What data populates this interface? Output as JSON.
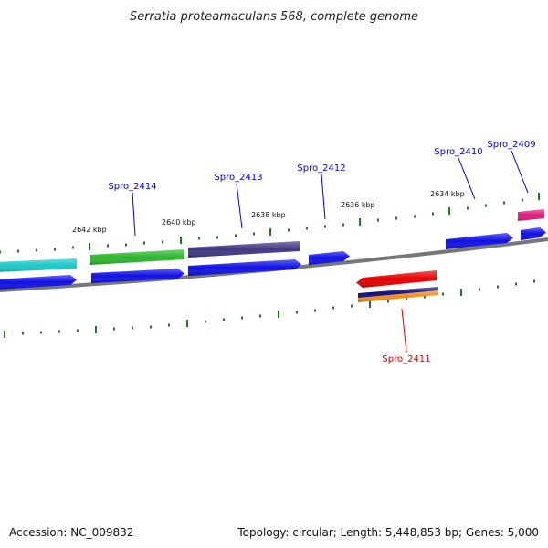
{
  "title": "Serratia proteamaculans 568, complete genome",
  "footer": {
    "accession": "Accession: NC_009832",
    "summary": "Topology: circular; Length: 5,448,853 bp; Genes: 5,000"
  },
  "scale_labels": [
    "2642 kbp",
    "2640 kbp",
    "2638 kbp",
    "2636 kbp",
    "2634 kbp"
  ],
  "gene_labels": [
    {
      "name": "Spro_2414",
      "color": "#0000cc"
    },
    {
      "name": "Spro_2413",
      "color": "#0000cc"
    },
    {
      "name": "Spro_2412",
      "color": "#0000cc"
    },
    {
      "name": "Spro_2410",
      "color": "#0000cc"
    },
    {
      "name": "Spro_2409",
      "color": "#0000cc"
    },
    {
      "name": "Spro_2411",
      "color": "#cc0000"
    }
  ],
  "colors": {
    "cyan": "#1ec8c8",
    "green": "#2db82d",
    "purple": "#3f3882",
    "blue": "#1010e6",
    "red": "#e60000",
    "magenta": "#e6197f",
    "navy": "#10107a",
    "orange": "#f08c1e",
    "backbone": "#777777",
    "tick": "#1e7a1e"
  }
}
